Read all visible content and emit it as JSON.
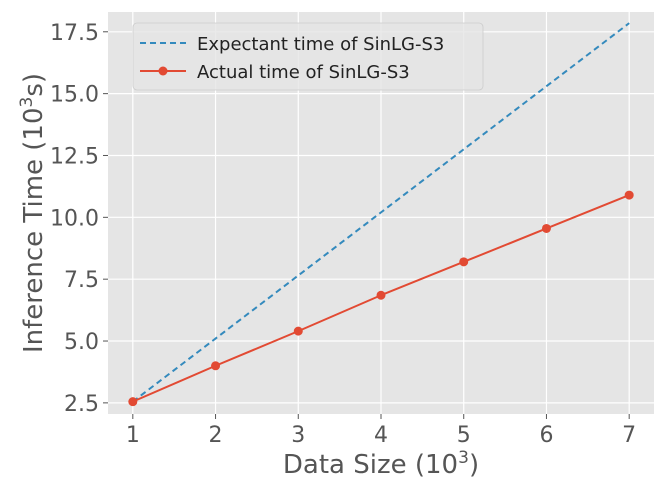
{
  "chart_data": {
    "type": "line",
    "xlabel_main": "Data Size (10",
    "xlabel_sup": "3",
    "xlabel_end": ")",
    "ylabel_main": "Inference Time (10",
    "ylabel_sup": "3",
    "ylabel_end": "s)",
    "x": [
      1,
      2,
      3,
      4,
      5,
      6,
      7
    ],
    "xticks": [
      1,
      2,
      3,
      4,
      5,
      6,
      7
    ],
    "xtick_labels": [
      "1",
      "2",
      "3",
      "4",
      "5",
      "6",
      "7"
    ],
    "yticks": [
      2.5,
      5.0,
      7.5,
      10.0,
      12.5,
      15.0,
      17.5
    ],
    "ytick_labels": [
      "2.5",
      "5.0",
      "7.5",
      "10.0",
      "12.5",
      "15.0",
      "17.5"
    ],
    "xlim": [
      0.7,
      7.3
    ],
    "ylim": [
      2.05,
      18.3
    ],
    "grid": true,
    "legend_position": "top-left",
    "series": [
      {
        "name": "Expectant time of SinLG-S3",
        "style": "dashed",
        "markers": false,
        "color": "#348ABD",
        "values": [
          2.55,
          5.1,
          7.65,
          10.2,
          12.75,
          15.3,
          17.85
        ]
      },
      {
        "name": "Actual time of SinLG-S3",
        "style": "solid",
        "markers": true,
        "color": "#E24A33",
        "values": [
          2.55,
          4.0,
          5.4,
          6.85,
          8.2,
          9.55,
          10.9
        ]
      }
    ]
  }
}
